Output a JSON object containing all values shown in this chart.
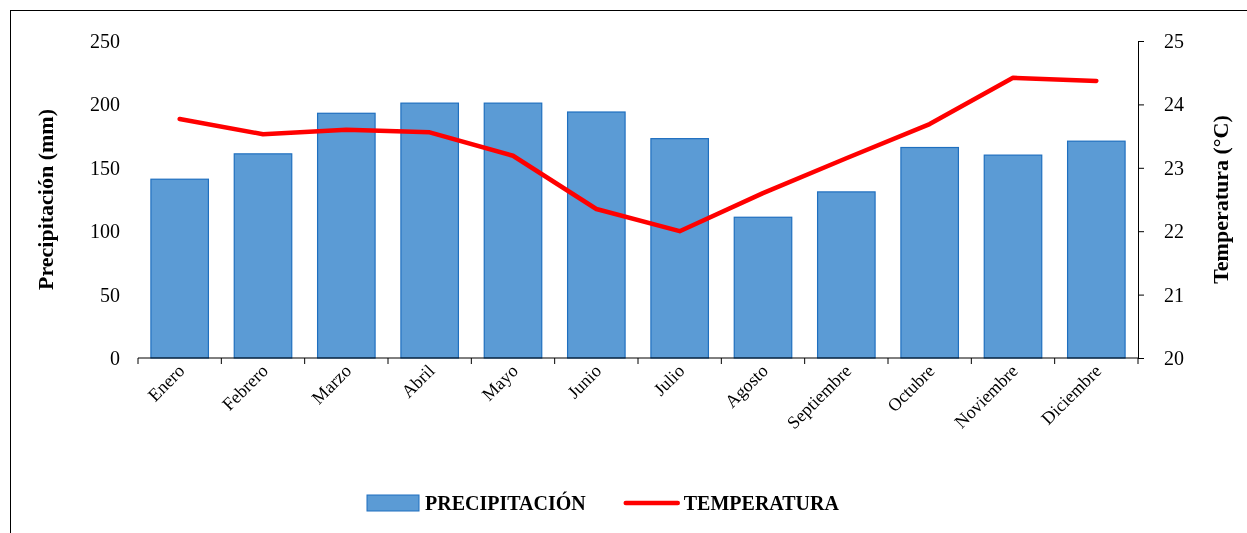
{
  "chart_data": {
    "type": "bar",
    "categories": [
      "Enero",
      "Febrero",
      "Marzo",
      "Abril",
      "Mayo",
      "Junio",
      "Julio",
      "Agosto",
      "Septiembre",
      "Octubre",
      "Noviembre",
      "Diciembre"
    ],
    "ylabel": "Precipitación (mm)",
    "y2label": "Temperatura (°C)",
    "ylim": [
      0,
      250
    ],
    "yticks": [
      0,
      50,
      100,
      150,
      200,
      250
    ],
    "y2lim": [
      20,
      25
    ],
    "y2ticks": [
      20,
      21,
      22,
      23,
      24,
      25
    ],
    "legend": "bottom",
    "series": [
      {
        "name": "PRECIPITACIÓN",
        "color": "#5b9bd5",
        "values": [
          141,
          161,
          193,
          201,
          201,
          194,
          173,
          111,
          131,
          166,
          160,
          171
        ]
      },
      {
        "name": "TEMPERATURA",
        "type": "line",
        "axis": "y2",
        "color": "#ff0000",
        "values": [
          23.77,
          23.53,
          23.6,
          23.56,
          23.19,
          22.35,
          22.0,
          22.6,
          23.15,
          23.69,
          24.42,
          24.37
        ]
      }
    ]
  }
}
